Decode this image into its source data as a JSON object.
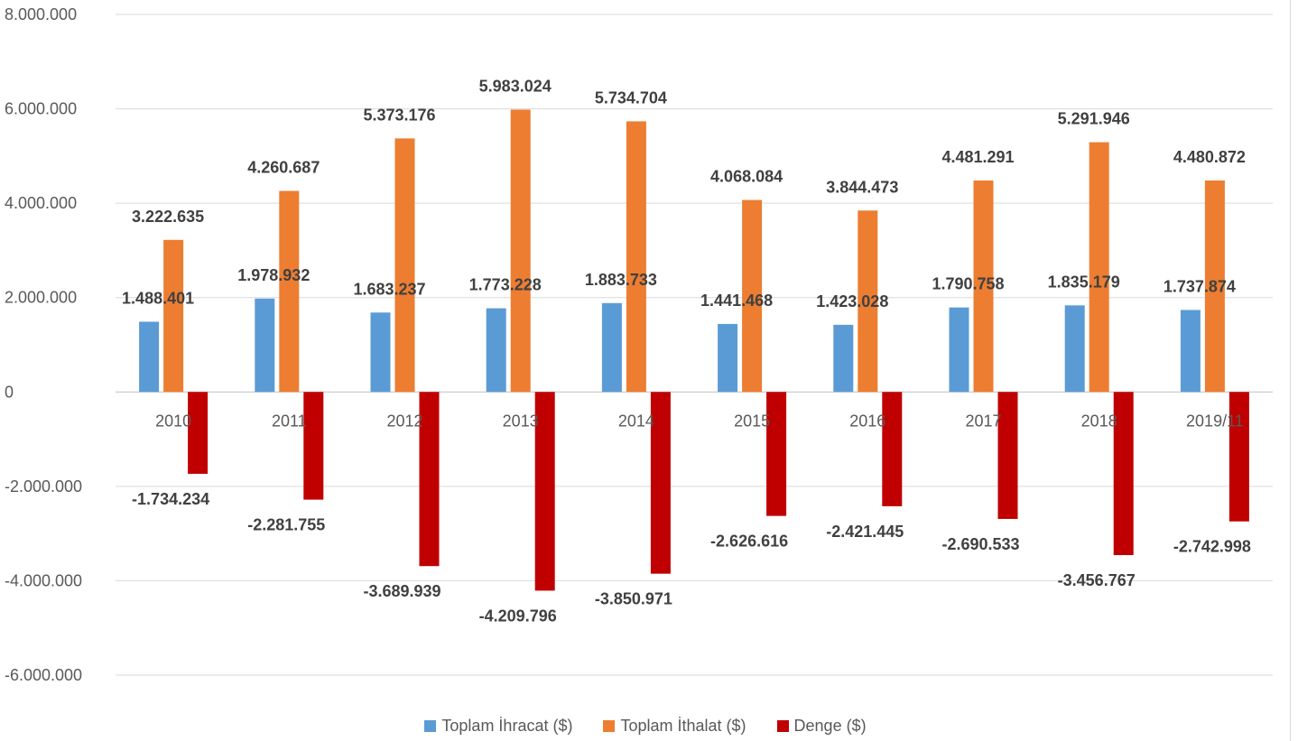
{
  "chart_data": {
    "type": "bar",
    "categories": [
      "2010",
      "2011",
      "2012",
      "2013",
      "2014",
      "2015",
      "2016",
      "2017",
      "2018",
      "2019/11"
    ],
    "series": [
      {
        "name": "Toplam İhracat ($)",
        "color": "#5B9BD5",
        "values": [
          1488401,
          1978932,
          1683237,
          1773228,
          1883733,
          1441468,
          1423028,
          1790758,
          1835179,
          1737874
        ],
        "labels": [
          "1.488.401",
          "1.978.932",
          "1.683.237",
          "1.773.228",
          "1.883.733",
          "1.441.468",
          "1.423.028",
          "1.790.758",
          "1.835.179",
          "1.737.874"
        ]
      },
      {
        "name": "Toplam İthalat ($)",
        "color": "#ED7D31",
        "values": [
          3222635,
          4260687,
          5373176,
          5983024,
          5734704,
          4068084,
          3844473,
          4481291,
          5291946,
          4480872
        ],
        "labels": [
          "3.222.635",
          "4.260.687",
          "5.373.176",
          "5.983.024",
          "5.734.704",
          "4.068.084",
          "3.844.473",
          "4.481.291",
          "5.291.946",
          "4.480.872"
        ]
      },
      {
        "name": "Denge ($)",
        "color": "#C00000",
        "values": [
          -1734234,
          -2281755,
          -3689939,
          -4209796,
          -3850971,
          -2626616,
          -2421445,
          -2690533,
          -3456767,
          -2742998
        ],
        "labels": [
          "-1.734.234",
          "-2.281.755",
          "-3.689.939",
          "-4.209.796",
          "-3.850.971",
          "-2.626.616",
          "-2.421.445",
          "-2.690.533",
          "-3.456.767",
          "-2.742.998"
        ]
      }
    ],
    "ylim": [
      -6000000,
      8000000
    ],
    "yticks": [
      8000000,
      6000000,
      4000000,
      2000000,
      0,
      -2000000,
      -4000000,
      -6000000
    ],
    "ytick_labels": [
      "8.000.000",
      "6.000.000",
      "4.000.000",
      "2.000.000",
      "0",
      "-2.000.000",
      "-4.000.000",
      "-6.000.000"
    ],
    "grid": true,
    "legend_position": "bottom",
    "title": "",
    "xlabel": "",
    "ylabel": ""
  }
}
